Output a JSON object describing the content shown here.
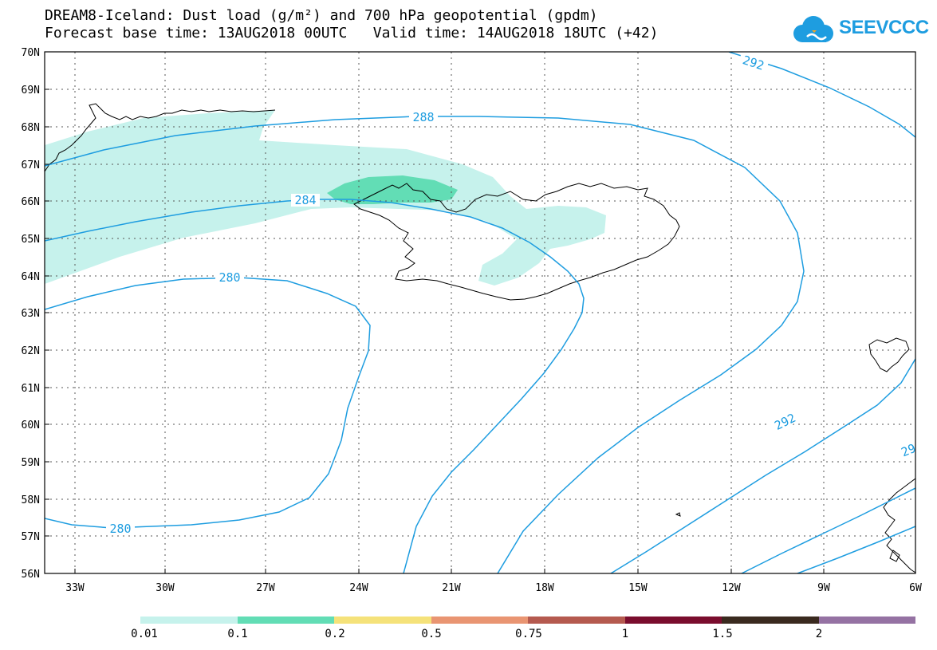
{
  "header": {
    "title_line1": "DREAM8-Iceland: Dust load (g/m²) and 700 hPa geopotential (gpdm)",
    "title_line2": "Forecast base time: 13AUG2018 00UTC   Valid time: 14AUG2018 18UTC (+42)",
    "logo_text": "SEEVCCC"
  },
  "map": {
    "lat_labels": [
      "70N",
      "69N",
      "68N",
      "67N",
      "66N",
      "65N",
      "64N",
      "63N",
      "62N",
      "61N",
      "60N",
      "59N",
      "58N",
      "57N",
      "56N"
    ],
    "lon_labels": [
      "33W",
      "30W",
      "27W",
      "24W",
      "21W",
      "18W",
      "15W",
      "12W",
      "9W",
      "6W"
    ],
    "contour_labels": {
      "c280_upper": "280",
      "c280_lower": "280",
      "c284": "284",
      "c288": "288",
      "c292_top": "292",
      "c292_right": "292",
      "c296_edge": "29"
    },
    "colors": {
      "contour": "#1e9de0",
      "coast": "#000000",
      "dust_low": "#c6f2ec",
      "dust_mid": "#62ddb5"
    }
  },
  "legend": {
    "labels": [
      "0.01",
      "0.1",
      "0.2",
      "0.5",
      "0.75",
      "1",
      "1.5",
      "2"
    ],
    "colors": [
      "#c6f2ec",
      "#62ddb5",
      "#f5e27a",
      "#e99572",
      "#b55a4f",
      "#7a0d2e",
      "#3a2a1f",
      "#9572a3"
    ]
  }
}
